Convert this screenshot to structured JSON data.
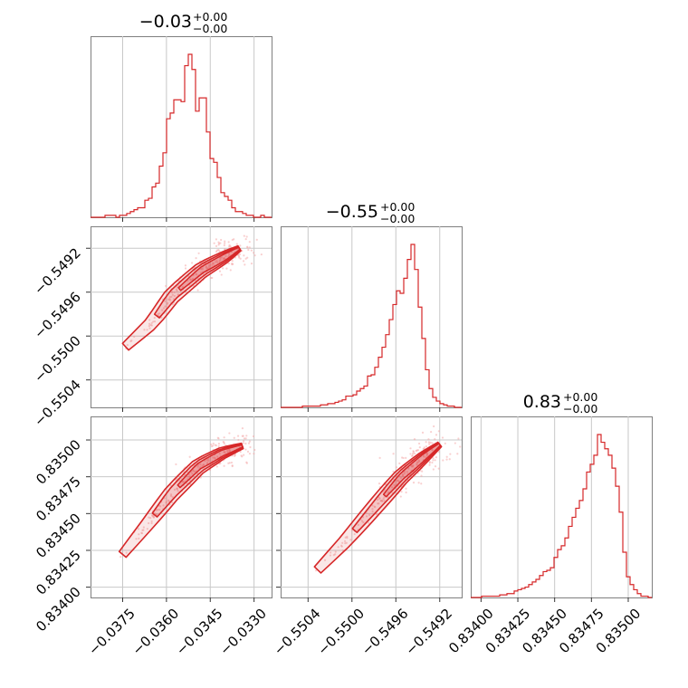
{
  "colors": {
    "accent": "#d62728",
    "scatter": "#f4a9aa",
    "frame": "#7f7f7f",
    "grid": "#c8c8c8"
  },
  "chart_data": {
    "type": "corner",
    "parameters": [
      {
        "range": [
          -0.0386,
          -0.0324
        ],
        "ticks": [
          -0.0375,
          -0.036,
          -0.0345,
          -0.033
        ],
        "tick_labels": [
          "−0.0375",
          "−0.0360",
          "−0.0345",
          "−0.0330"
        ],
        "title": {
          "value": "−0.03",
          "upper": "+0.00",
          "lower": "−0.00"
        }
      },
      {
        "range": [
          -0.55065,
          -0.549
        ],
        "ticks": [
          -0.5504,
          -0.55,
          -0.5496,
          -0.5492
        ],
        "tick_labels": [
          "−0.5504",
          "−0.5500",
          "−0.5496",
          "−0.5492"
        ],
        "title": {
          "value": "−0.55",
          "upper": "+0.00",
          "lower": "−0.00"
        }
      },
      {
        "range": [
          0.83393,
          0.83516
        ],
        "ticks": [
          0.834,
          0.83425,
          0.8345,
          0.83475,
          0.835
        ],
        "tick_labels": [
          "0.83400",
          "0.83425",
          "0.83450",
          "0.83475",
          "0.83500"
        ],
        "title": {
          "value": "0.83",
          "upper": "+0.00",
          "lower": "−0.00"
        }
      }
    ],
    "histograms": [
      {
        "param": 0,
        "bin_edges_range": [
          -0.0386,
          -0.0324
        ],
        "n_bins": 50,
        "counts": [
          0,
          0,
          0,
          0,
          1,
          1,
          1,
          0,
          1,
          1,
          2,
          3,
          4,
          5,
          5,
          9,
          10,
          16,
          18,
          27,
          34,
          52,
          55,
          62,
          62,
          61,
          80,
          86,
          78,
          56,
          63,
          63,
          45,
          31,
          29,
          21,
          13,
          11,
          9,
          5,
          3,
          3,
          2,
          1,
          1,
          0,
          0,
          1,
          0,
          0
        ]
      },
      {
        "param": 1,
        "bin_edges_range": [
          -0.55065,
          -0.549
        ],
        "n_bins": 50,
        "counts": [
          0,
          0,
          0,
          0,
          0,
          0,
          1,
          1,
          1,
          1,
          1,
          2,
          2,
          3,
          3,
          4,
          5,
          6,
          9,
          9,
          10,
          13,
          15,
          17,
          25,
          26,
          32,
          40,
          48,
          58,
          70,
          82,
          93,
          91,
          103,
          118,
          130,
          110,
          80,
          55,
          30,
          15,
          8,
          5,
          3,
          2,
          1,
          1,
          0,
          0
        ]
      },
      {
        "param": 2,
        "bin_edges_range": [
          0.83393,
          0.83516
        ],
        "n_bins": 50,
        "counts": [
          0,
          0,
          0,
          1,
          1,
          1,
          1,
          1,
          2,
          2,
          3,
          3,
          5,
          6,
          7,
          8,
          10,
          12,
          14,
          17,
          20,
          21,
          23,
          31,
          37,
          40,
          46,
          55,
          62,
          69,
          75,
          84,
          97,
          103,
          110,
          126,
          120,
          115,
          110,
          100,
          86,
          66,
          35,
          16,
          10,
          6,
          3,
          1,
          1,
          0
        ]
      }
    ],
    "scatter_panels": [
      {
        "x_param": 0,
        "y_param": 1,
        "trend_x": [
          -0.0377,
          -0.0365,
          -0.0358,
          -0.0348,
          -0.034,
          -0.0335
        ],
        "trend_y": [
          -0.55017,
          -0.54988,
          -0.54963,
          -0.5494,
          -0.54928,
          -0.5492
        ]
      },
      {
        "x_param": 0,
        "y_param": 2,
        "trend_x": [
          -0.0378,
          -0.0366,
          -0.0358,
          -0.0349,
          -0.0341,
          -0.0334
        ],
        "trend_y": [
          0.83415,
          0.83444,
          0.83464,
          0.83482,
          0.83491,
          0.83496
        ]
      },
      {
        "x_param": 1,
        "y_param": 2,
        "trend_x": [
          -0.5504,
          -0.55005,
          -0.54975,
          -0.54955,
          -0.54935,
          -0.5492
        ],
        "trend_y": [
          0.83405,
          0.83432,
          0.83458,
          0.83475,
          0.83488,
          0.83497
        ]
      }
    ]
  }
}
